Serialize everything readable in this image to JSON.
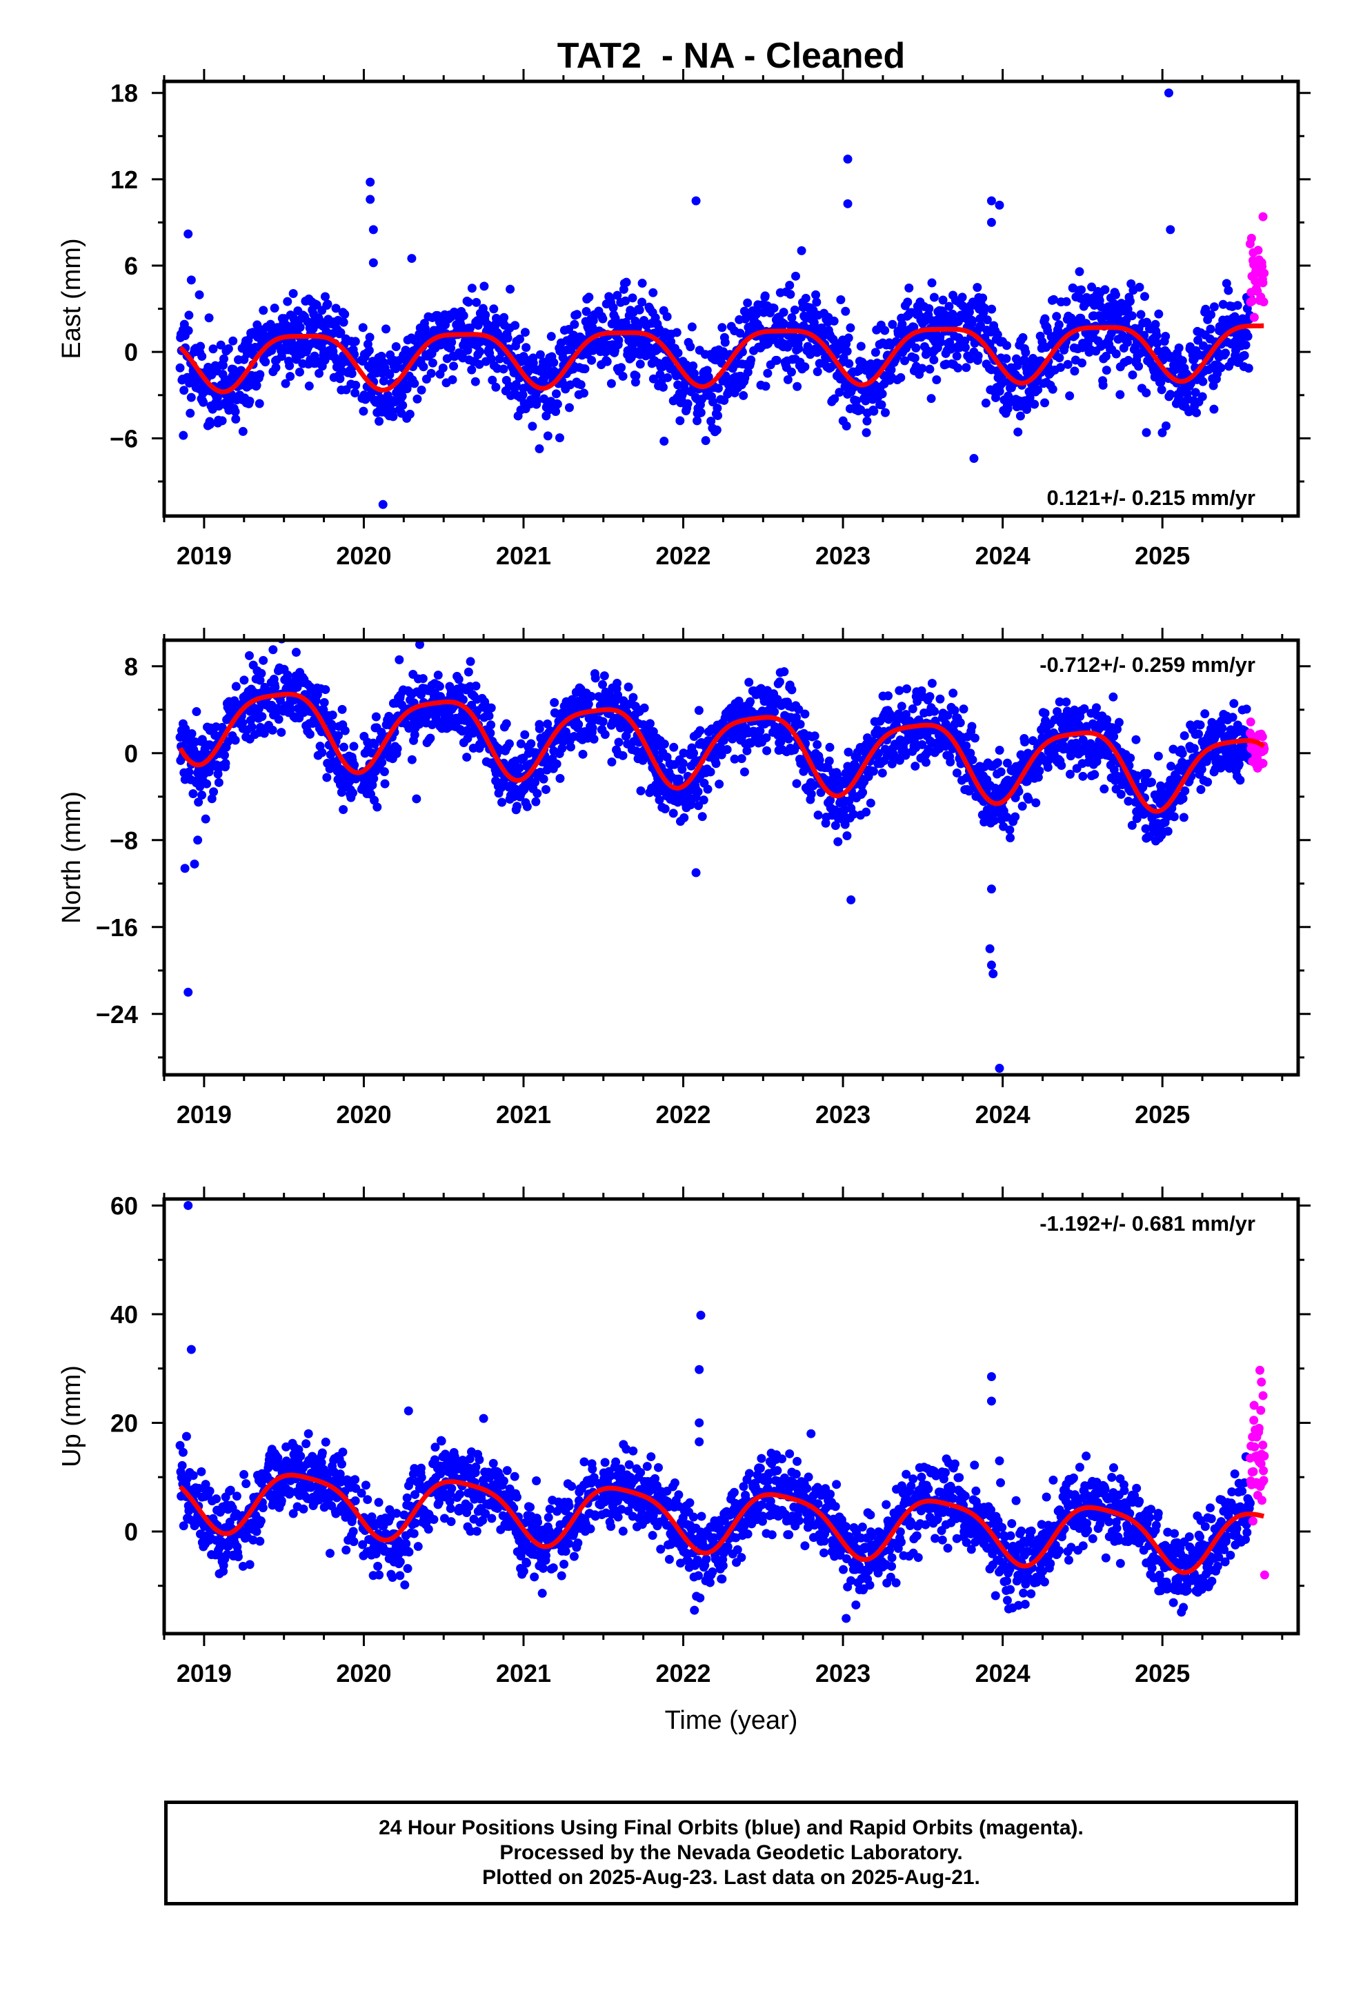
{
  "title": "TAT2  - NA - Cleaned",
  "chart_data": [
    {
      "type": "scatter",
      "panel": "east",
      "ylabel": "East (mm)",
      "xlabel": "",
      "xlim": [
        2018.75,
        2025.85
      ],
      "ylim": [
        -11.4,
        18.8
      ],
      "yticks": [
        -6,
        0,
        6,
        12,
        18
      ],
      "xticks": [
        2019,
        2020,
        2021,
        2022,
        2023,
        2024,
        2025
      ],
      "rate_label": "0.121+/- 0.215 mm/yr",
      "rate_position": "bottom-right",
      "series": [
        {
          "color": "#0000ff",
          "type": "scatter",
          "x_range": [
            2018.85,
            2025.55
          ],
          "level": 0,
          "scatter_sd": 1.5,
          "seed": 11
        },
        {
          "color": "#ff00ff",
          "type": "scatter",
          "x_range": [
            2025.55,
            2025.64
          ],
          "level": 3.5,
          "scatter_sd": 1.6,
          "seed": 12
        },
        {
          "color": "#ff0000",
          "type": "line",
          "model": "seasonal"
        }
      ],
      "model": {
        "offset": 0.0,
        "rate": 0.121,
        "annual_amp": 1.9,
        "annual_phase": 2019.62,
        "semi_amp": 0.5,
        "semi_phase": 2019.37
      },
      "outliers": [
        {
          "x": 2018.9,
          "y": 8.2
        },
        {
          "x": 2018.92,
          "y": 5.0
        },
        {
          "x": 2018.87,
          "y": -5.8
        },
        {
          "x": 2020.04,
          "y": 11.8
        },
        {
          "x": 2020.04,
          "y": 10.6
        },
        {
          "x": 2020.06,
          "y": 8.5
        },
        {
          "x": 2020.06,
          "y": 6.2
        },
        {
          "x": 2020.3,
          "y": 6.5
        },
        {
          "x": 2020.12,
          "y": -10.6
        },
        {
          "x": 2022.08,
          "y": 10.5
        },
        {
          "x": 2021.88,
          "y": -6.2
        },
        {
          "x": 2023.03,
          "y": 13.4
        },
        {
          "x": 2023.03,
          "y": 10.3
        },
        {
          "x": 2023.93,
          "y": 10.5
        },
        {
          "x": 2023.93,
          "y": 9.0
        },
        {
          "x": 2023.98,
          "y": 10.2
        },
        {
          "x": 2023.82,
          "y": -7.4
        },
        {
          "x": 2025.04,
          "y": 18.0
        },
        {
          "x": 2025.05,
          "y": 8.5
        },
        {
          "x": 2024.9,
          "y": -5.6
        },
        {
          "x": 2025.63,
          "y": 9.4
        }
      ]
    },
    {
      "type": "scatter",
      "panel": "north",
      "ylabel": "North (mm)",
      "xlabel": "",
      "xlim": [
        2018.75,
        2025.85
      ],
      "ylim": [
        -29.6,
        10.4
      ],
      "yticks": [
        -24,
        -16,
        -8,
        0,
        8
      ],
      "xticks": [
        2019,
        2020,
        2021,
        2022,
        2023,
        2024,
        2025
      ],
      "rate_label": "-0.712+/- 0.259 mm/yr",
      "rate_position": "top-right",
      "series": [
        {
          "color": "#0000ff",
          "type": "scatter",
          "x_range": [
            2018.85,
            2025.55
          ],
          "level": 0,
          "scatter_sd": 1.7,
          "seed": 21
        },
        {
          "color": "#ff00ff",
          "type": "scatter",
          "x_range": [
            2025.55,
            2025.64
          ],
          "level": -0.5,
          "scatter_sd": 1.0,
          "seed": 22
        },
        {
          "color": "#ff0000",
          "type": "line",
          "model": "seasonal"
        }
      ],
      "model": {
        "offset": 0.8,
        "rate": -0.712,
        "annual_amp": 3.4,
        "annual_phase": 2019.47,
        "semi_amp": 0.8,
        "semi_phase": 2019.2
      },
      "outliers": [
        {
          "x": 2018.88,
          "y": -10.6
        },
        {
          "x": 2018.94,
          "y": -10.2
        },
        {
          "x": 2018.9,
          "y": -22.0
        },
        {
          "x": 2018.96,
          "y": -8.0
        },
        {
          "x": 2020.35,
          "y": 10.0
        },
        {
          "x": 2020.33,
          "y": -4.2
        },
        {
          "x": 2022.08,
          "y": -11.0
        },
        {
          "x": 2023.05,
          "y": -13.5
        },
        {
          "x": 2023.93,
          "y": -12.5
        },
        {
          "x": 2023.92,
          "y": -18.0
        },
        {
          "x": 2023.93,
          "y": -19.5
        },
        {
          "x": 2023.94,
          "y": -20.3
        },
        {
          "x": 2023.98,
          "y": -29.0
        }
      ]
    },
    {
      "type": "scatter",
      "panel": "up",
      "ylabel": "Up (mm)",
      "xlabel": "Time (year)",
      "xlim": [
        2018.75,
        2025.85
      ],
      "ylim": [
        -18.8,
        61.2
      ],
      "yticks": [
        0,
        20,
        40,
        60
      ],
      "xticks": [
        2019,
        2020,
        2021,
        2022,
        2023,
        2024,
        2025
      ],
      "rate_label": "-1.192+/- 0.681 mm/yr",
      "rate_position": "top-right",
      "series": [
        {
          "color": "#0000ff",
          "type": "scatter",
          "x_range": [
            2018.85,
            2025.55
          ],
          "level": 0,
          "scatter_sd": 3.6,
          "seed": 31
        },
        {
          "color": "#ff00ff",
          "type": "scatter",
          "x_range": [
            2025.55,
            2025.64
          ],
          "level": 12,
          "scatter_sd": 7.5,
          "seed": 32
        },
        {
          "color": "#ff0000",
          "type": "line",
          "model": "seasonal"
        }
      ],
      "model": {
        "offset": 2.6,
        "rate": -1.192,
        "annual_amp": 5.5,
        "annual_phase": 2019.62,
        "semi_amp": 1.2,
        "semi_phase": 2019.4
      },
      "outliers": [
        {
          "x": 2018.9,
          "y": 60.0
        },
        {
          "x": 2018.92,
          "y": 33.5
        },
        {
          "x": 2018.89,
          "y": 17.5
        },
        {
          "x": 2020.28,
          "y": 22.2
        },
        {
          "x": 2020.75,
          "y": 20.8
        },
        {
          "x": 2022.11,
          "y": 39.8
        },
        {
          "x": 2022.1,
          "y": 29.8
        },
        {
          "x": 2022.1,
          "y": 20.0
        },
        {
          "x": 2022.1,
          "y": 16.5
        },
        {
          "x": 2022.07,
          "y": -14.5
        },
        {
          "x": 2022.8,
          "y": 18.0
        },
        {
          "x": 2023.93,
          "y": 28.5
        },
        {
          "x": 2023.93,
          "y": 24.0
        },
        {
          "x": 2023.98,
          "y": 13.0
        },
        {
          "x": 2023.02,
          "y": -16.0
        },
        {
          "x": 2025.62,
          "y": 27.5
        },
        {
          "x": 2025.63,
          "y": 25.0
        },
        {
          "x": 2025.64,
          "y": -8.0
        }
      ]
    }
  ],
  "footer": {
    "line1": "24 Hour Positions Using Final Orbits (blue) and Rapid Orbits (magenta).",
    "line2": "Processed by the Nevada Geodetic Laboratory.",
    "line3": "Plotted on 2025-Aug-23. Last data on 2025-Aug-21."
  }
}
